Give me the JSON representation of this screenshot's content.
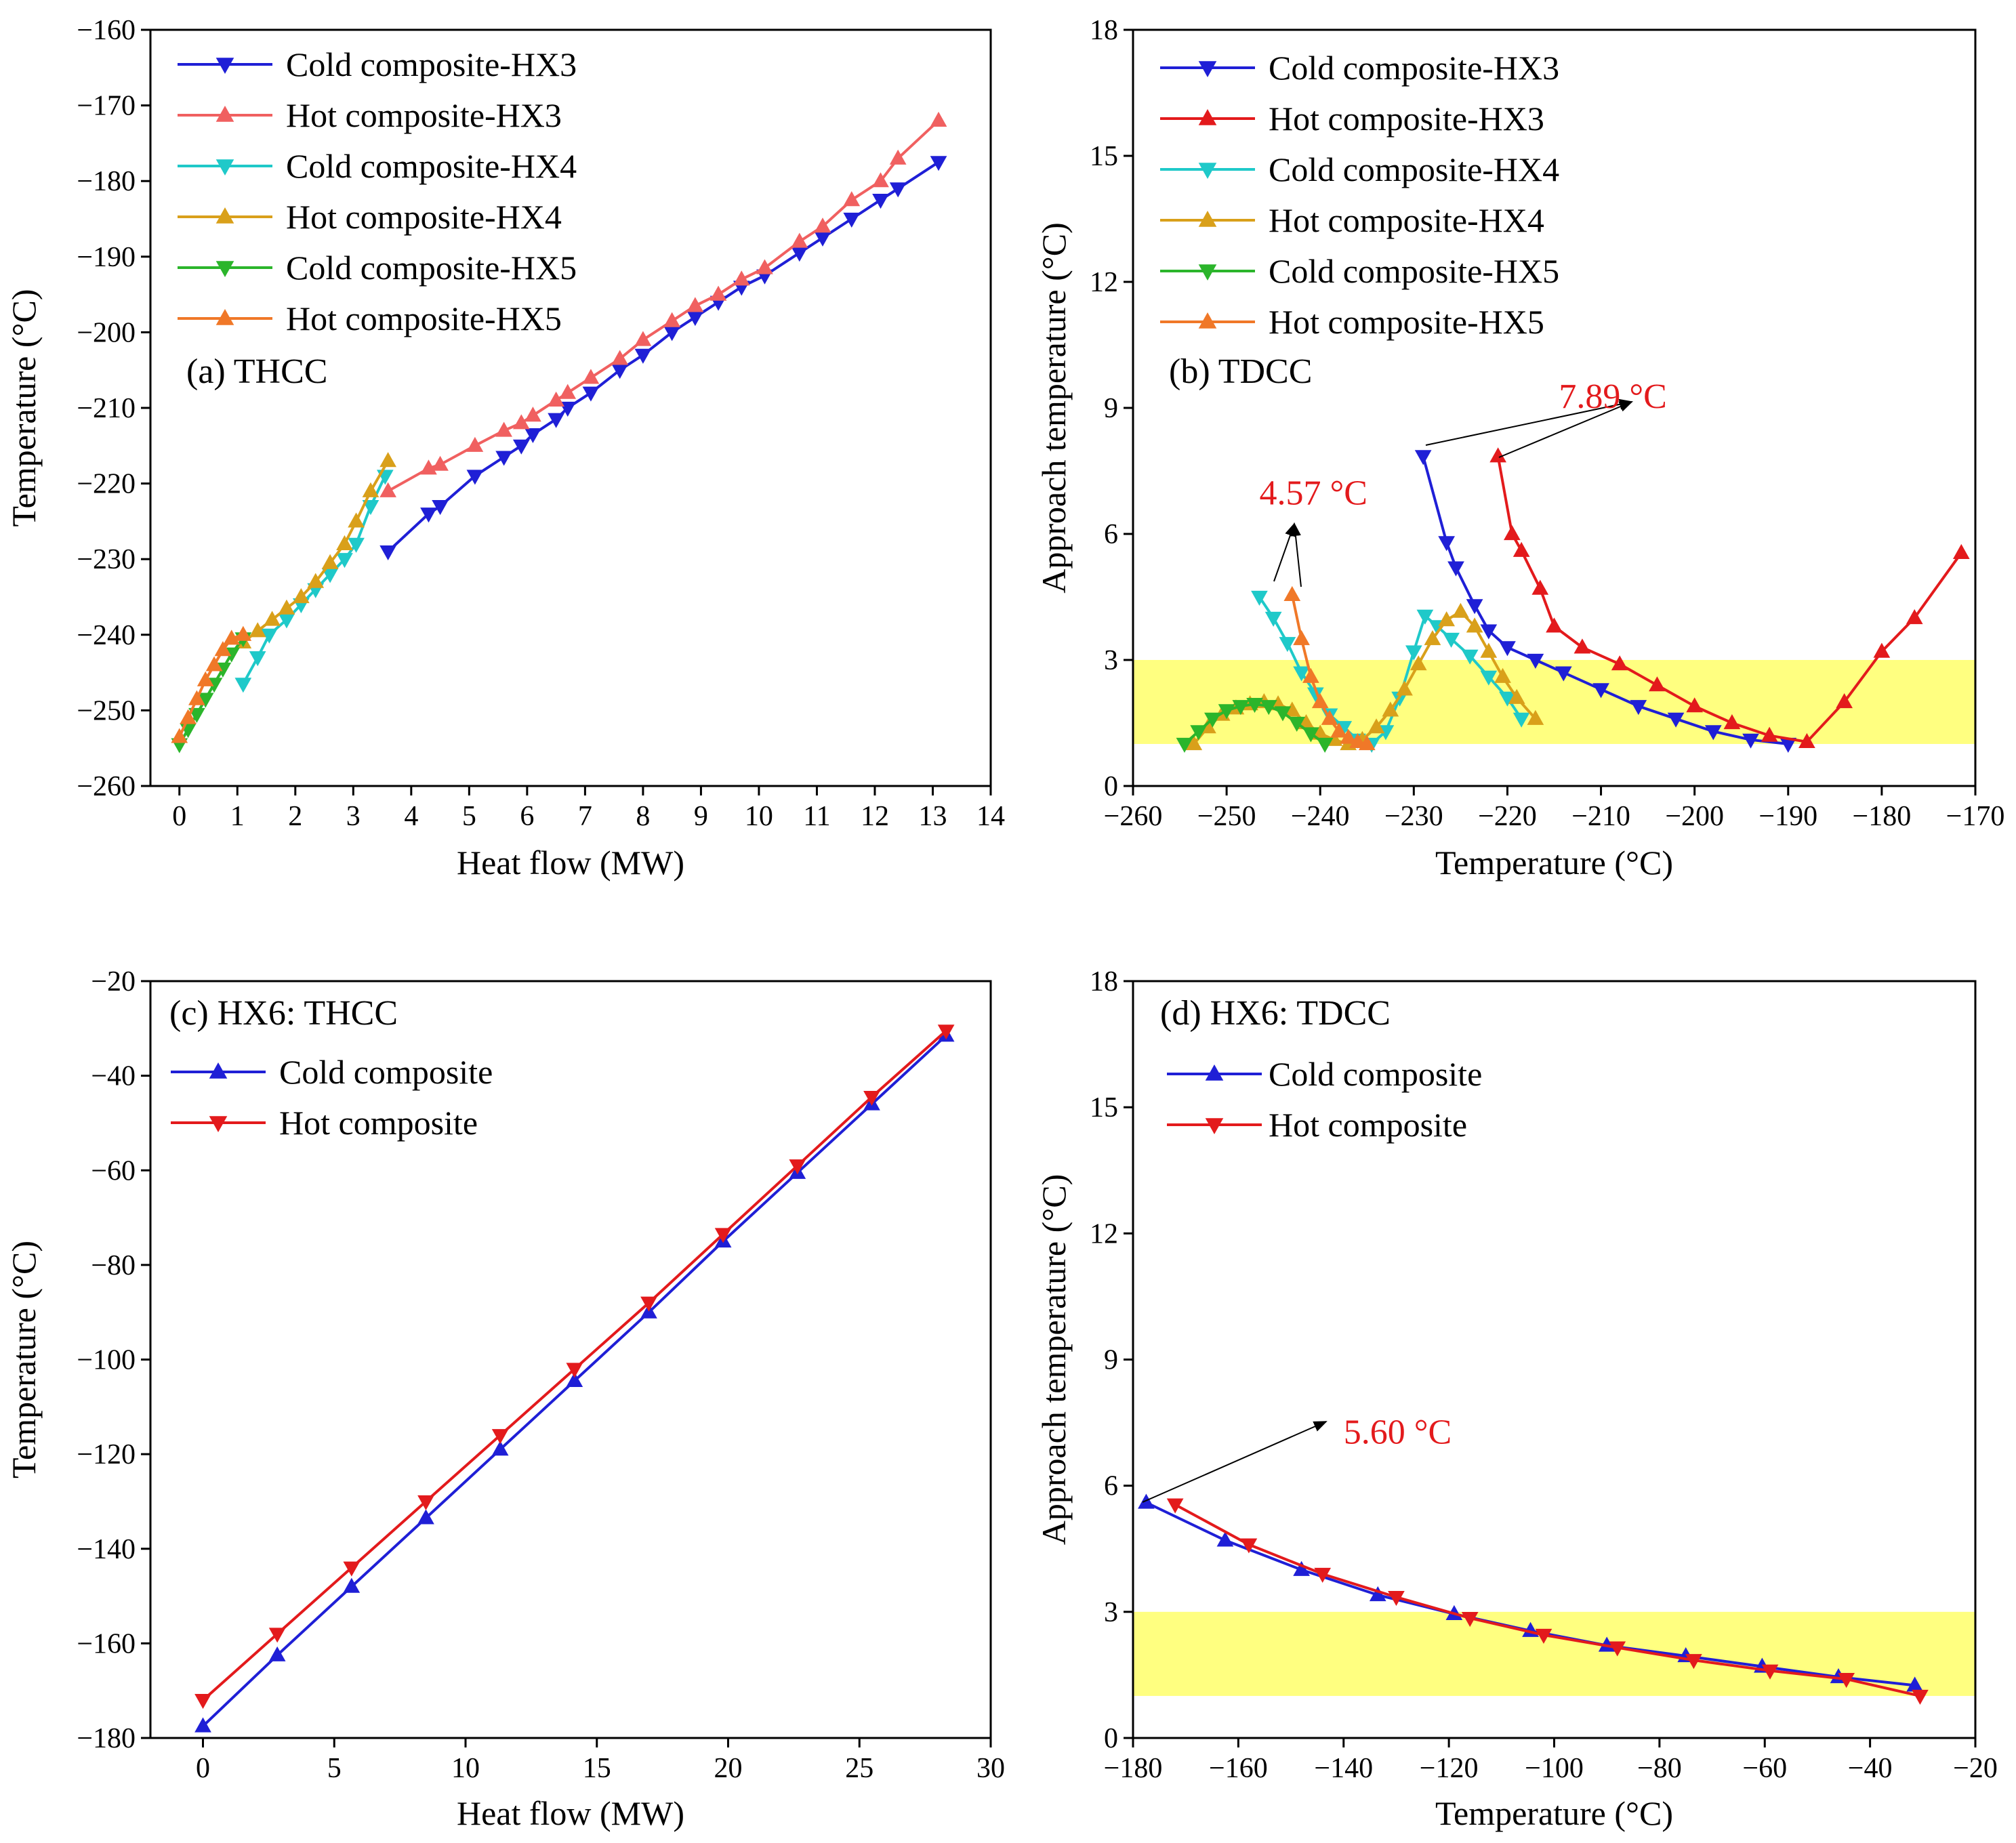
{
  "chart_data": [
    {
      "type": "line",
      "panel_label": "(a) THCC",
      "xlabel": "Heat flow (MW)",
      "ylabel": "Temperature (°C)",
      "xlim": [
        -0.5,
        14
      ],
      "ylim": [
        -260,
        -160
      ],
      "xticks": [
        0,
        1,
        2,
        3,
        4,
        5,
        6,
        7,
        8,
        9,
        10,
        11,
        12,
        13,
        14
      ],
      "yticks": [
        -260,
        -250,
        -240,
        -230,
        -220,
        -210,
        -200,
        -190,
        -180,
        -170,
        -160
      ],
      "tick_labels_x": [
        "0",
        "1",
        "2",
        "3",
        "4",
        "5",
        "6",
        "7",
        "8",
        "9",
        "10",
        "11",
        "12",
        "13",
        "14"
      ],
      "tick_labels_y": [
        "−260",
        "−250",
        "−240",
        "−230",
        "−220",
        "−210",
        "−200",
        "−190",
        "−180",
        "−170",
        "−160"
      ],
      "legend_position": "top-left",
      "series": [
        {
          "name": "Cold composite-HX3",
          "color": "#1f1fd6",
          "marker": "down",
          "x": [
            3.6,
            4.3,
            4.5,
            5.1,
            5.6,
            5.9,
            6.1,
            6.5,
            6.7,
            7.1,
            7.6,
            8.0,
            8.5,
            8.9,
            9.3,
            9.7,
            10.1,
            10.7,
            11.1,
            11.6,
            12.1,
            12.4,
            13.1
          ],
          "y": [
            -229,
            -224,
            -223,
            -219,
            -216.5,
            -215,
            -213.5,
            -211.5,
            -210,
            -208,
            -205,
            -203,
            -200,
            -198,
            -196,
            -194,
            -192.5,
            -189.5,
            -187.5,
            -185,
            -182.5,
            -181,
            -177.5
          ]
        },
        {
          "name": "Hot composite-HX3",
          "color": "#f06060",
          "marker": "up",
          "x": [
            3.6,
            4.3,
            4.5,
            5.1,
            5.6,
            5.9,
            6.1,
            6.5,
            6.7,
            7.1,
            7.6,
            8.0,
            8.5,
            8.9,
            9.3,
            9.7,
            10.1,
            10.7,
            11.1,
            11.6,
            12.1,
            12.4,
            13.1
          ],
          "y": [
            -221,
            -218,
            -217.5,
            -215,
            -213,
            -212,
            -211,
            -209,
            -208,
            -206,
            -203.5,
            -201,
            -198.5,
            -196.5,
            -195,
            -193,
            -191.5,
            -188,
            -186,
            -182.5,
            -180,
            -177,
            -172
          ]
        },
        {
          "name": "Cold composite-HX4",
          "color": "#1fc9c9",
          "marker": "down",
          "x": [
            1.1,
            1.35,
            1.55,
            1.85,
            2.1,
            2.35,
            2.6,
            2.85,
            3.05,
            3.3,
            3.55
          ],
          "y": [
            -246.5,
            -243,
            -240,
            -238,
            -236,
            -234,
            -232,
            -230,
            -228,
            -223,
            -219
          ]
        },
        {
          "name": "Hot composite-HX4",
          "color": "#d9a01a",
          "marker": "up",
          "x": [
            1.1,
            1.35,
            1.6,
            1.85,
            2.1,
            2.35,
            2.6,
            2.85,
            3.05,
            3.3,
            3.6
          ],
          "y": [
            -241,
            -239.5,
            -238,
            -236.5,
            -235,
            -233,
            -230.5,
            -228,
            -225,
            -221,
            -217
          ]
        },
        {
          "name": "Cold composite-HX5",
          "color": "#2bb52b",
          "marker": "down",
          "x": [
            0,
            0.15,
            0.3,
            0.45,
            0.6,
            0.75,
            0.9,
            1.1
          ],
          "y": [
            -254.5,
            -252.5,
            -250.5,
            -248.5,
            -246.5,
            -244.5,
            -242.5,
            -240.5
          ]
        },
        {
          "name": "Hot composite-HX5",
          "color": "#f07828",
          "marker": "up",
          "x": [
            0,
            0.15,
            0.3,
            0.45,
            0.6,
            0.75,
            0.9,
            1.1
          ],
          "y": [
            -253.5,
            -251,
            -248.5,
            -246,
            -244,
            -242,
            -240.5,
            -240
          ]
        }
      ]
    },
    {
      "type": "line",
      "panel_label": "(b) TDCC",
      "xlabel": "Temperature (°C)",
      "ylabel": "Approach temperature (°C)",
      "xlim": [
        -260,
        -170
      ],
      "ylim": [
        0,
        18
      ],
      "xticks": [
        -260,
        -250,
        -240,
        -230,
        -220,
        -210,
        -200,
        -190,
        -180,
        -170
      ],
      "yticks": [
        0,
        3,
        6,
        9,
        12,
        15,
        18
      ],
      "tick_labels_x": [
        "−260",
        "−250",
        "−240",
        "−230",
        "−220",
        "−210",
        "−200",
        "−190",
        "−180",
        "−170"
      ],
      "tick_labels_y": [
        "0",
        "3",
        "6",
        "9",
        "12",
        "15",
        "18"
      ],
      "legend_position": "top-left",
      "highlight_band": [
        1,
        3
      ],
      "highlight_color": "#ffff80",
      "annotations": [
        {
          "text": "7.89 °C",
          "color": "#e31a1c",
          "x": -214.5,
          "y": 9.0
        },
        {
          "text": "4.57 °C",
          "color": "#e31a1c",
          "x": -246.5,
          "y": 6.7
        }
      ],
      "series": [
        {
          "name": "Cold composite-HX3",
          "color": "#1f1fd6",
          "marker": "down",
          "x": [
            -229,
            -226.5,
            -225.5,
            -223.5,
            -222,
            -220,
            -217,
            -214,
            -210,
            -206,
            -202,
            -198,
            -194,
            -190
          ],
          "y": [
            7.85,
            5.8,
            5.2,
            4.3,
            3.7,
            3.3,
            3.0,
            2.7,
            2.3,
            1.9,
            1.6,
            1.3,
            1.1,
            1.0
          ]
        },
        {
          "name": "Hot composite-HX3",
          "color": "#e31a1c",
          "marker": "up",
          "x": [
            -221,
            -219.5,
            -218.5,
            -216.5,
            -215,
            -212,
            -208,
            -204,
            -200,
            -196,
            -192,
            -188,
            -184,
            -180,
            -176.5,
            -171.5
          ],
          "y": [
            7.85,
            6.0,
            5.6,
            4.7,
            3.8,
            3.3,
            2.9,
            2.4,
            1.9,
            1.5,
            1.2,
            1.05,
            2.0,
            3.2,
            4.0,
            5.55
          ]
        },
        {
          "name": "Cold composite-HX4",
          "color": "#1fc9c9",
          "marker": "down",
          "x": [
            -246.5,
            -245,
            -243.5,
            -242,
            -240.5,
            -239,
            -237.5,
            -236,
            -234.5,
            -233,
            -231.5,
            -230,
            -228.8,
            -227.5,
            -226,
            -224,
            -222,
            -220,
            -218.5
          ],
          "y": [
            4.5,
            4.0,
            3.4,
            2.7,
            2.2,
            1.7,
            1.4,
            1.1,
            1.0,
            1.3,
            2.1,
            3.2,
            4.05,
            3.8,
            3.5,
            3.1,
            2.6,
            2.1,
            1.6
          ]
        },
        {
          "name": "Hot composite-HX4",
          "color": "#d9a01a",
          "marker": "up",
          "x": [
            -253.5,
            -252,
            -250.5,
            -249,
            -247.5,
            -246,
            -244.5,
            -243,
            -241.5,
            -240,
            -238.5,
            -237,
            -235.5,
            -234,
            -232.5,
            -231,
            -229.5,
            -228,
            -226.5,
            -225,
            -223.5,
            -222,
            -220.5,
            -219,
            -217
          ],
          "y": [
            1.0,
            1.4,
            1.7,
            1.85,
            1.95,
            2.0,
            1.95,
            1.8,
            1.5,
            1.25,
            1.1,
            1.0,
            1.1,
            1.4,
            1.8,
            2.3,
            2.9,
            3.5,
            3.95,
            4.15,
            3.8,
            3.2,
            2.6,
            2.1,
            1.6
          ]
        },
        {
          "name": "Cold composite-HX5",
          "color": "#2bb52b",
          "marker": "down",
          "x": [
            -254.5,
            -253,
            -251.5,
            -250,
            -248.5,
            -247,
            -245.5,
            -244,
            -242.5,
            -241,
            -239.5
          ],
          "y": [
            1.0,
            1.3,
            1.6,
            1.8,
            1.9,
            1.95,
            1.9,
            1.75,
            1.5,
            1.25,
            1.0
          ]
        },
        {
          "name": "Hot composite-HX5",
          "color": "#f07828",
          "marker": "up",
          "x": [
            -243,
            -242,
            -241,
            -240,
            -239,
            -238,
            -237,
            -236,
            -235
          ],
          "y": [
            4.55,
            3.5,
            2.6,
            2.0,
            1.6,
            1.3,
            1.15,
            1.05,
            1.0
          ]
        }
      ]
    },
    {
      "type": "line",
      "panel_label": "(c) HX6: THCC",
      "xlabel": "Heat flow (MW)",
      "ylabel": "Temperature (°C)",
      "xlim": [
        -2,
        30
      ],
      "ylim": [
        -180,
        -20
      ],
      "xticks": [
        0,
        5,
        10,
        15,
        20,
        25,
        30
      ],
      "yticks": [
        -180,
        -160,
        -140,
        -120,
        -100,
        -80,
        -60,
        -40,
        -20
      ],
      "tick_labels_x": [
        "0",
        "5",
        "10",
        "15",
        "20",
        "25",
        "30"
      ],
      "tick_labels_y": [
        "−180",
        "−160",
        "−140",
        "−120",
        "−100",
        "−80",
        "−60",
        "−40",
        "−20"
      ],
      "legend_position": "top-left",
      "series": [
        {
          "name": "Cold composite",
          "color": "#1f1fd6",
          "marker": "up",
          "x": [
            0,
            2.83,
            5.66,
            8.49,
            11.32,
            14.15,
            16.98,
            19.81,
            22.64,
            25.47,
            28.3
          ],
          "y": [
            -177.5,
            -162.5,
            -148,
            -133.5,
            -119,
            -104.5,
            -90,
            -75,
            -60.5,
            -46,
            -31.5
          ]
        },
        {
          "name": "Hot composite",
          "color": "#e31a1c",
          "marker": "down",
          "x": [
            0,
            2.83,
            5.66,
            8.49,
            11.32,
            14.15,
            16.98,
            19.81,
            22.64,
            25.47,
            28.3
          ],
          "y": [
            -172,
            -158,
            -144,
            -130,
            -116,
            -102,
            -88,
            -73.5,
            -59,
            -44.5,
            -30.5
          ]
        }
      ]
    },
    {
      "type": "line",
      "panel_label": "(d) HX6: TDCC",
      "xlabel": "Temperature (°C)",
      "ylabel": "Approach temperature (°C)",
      "xlim": [
        -180,
        -20
      ],
      "ylim": [
        0,
        18
      ],
      "xticks": [
        -180,
        -160,
        -140,
        -120,
        -100,
        -80,
        -60,
        -40,
        -20
      ],
      "yticks": [
        0,
        3,
        6,
        9,
        12,
        15,
        18
      ],
      "tick_labels_x": [
        "−180",
        "−160",
        "−140",
        "−120",
        "−100",
        "−80",
        "−60",
        "−40",
        "−20"
      ],
      "tick_labels_y": [
        "0",
        "3",
        "6",
        "9",
        "12",
        "15",
        "18"
      ],
      "legend_position": "top-left",
      "highlight_band": [
        1,
        3
      ],
      "highlight_color": "#ffff80",
      "annotations": [
        {
          "text": "5.60 °C",
          "color": "#e31a1c",
          "x": -140,
          "y": 7.0
        }
      ],
      "series": [
        {
          "name": "Cold composite",
          "color": "#1f1fd6",
          "marker": "up",
          "x": [
            -177.5,
            -162.5,
            -148,
            -133.5,
            -119,
            -104.5,
            -90,
            -75,
            -60.5,
            -46,
            -31.5
          ],
          "y": [
            5.6,
            4.7,
            4.0,
            3.4,
            2.95,
            2.55,
            2.2,
            1.95,
            1.7,
            1.45,
            1.25
          ]
        },
        {
          "name": "Hot composite",
          "color": "#e31a1c",
          "marker": "down",
          "x": [
            -172,
            -158,
            -144,
            -130,
            -116,
            -102,
            -88,
            -73.5,
            -59,
            -44.5,
            -30.5
          ],
          "y": [
            5.55,
            4.6,
            3.9,
            3.35,
            2.85,
            2.45,
            2.15,
            1.85,
            1.6,
            1.4,
            1.0
          ]
        }
      ]
    }
  ]
}
